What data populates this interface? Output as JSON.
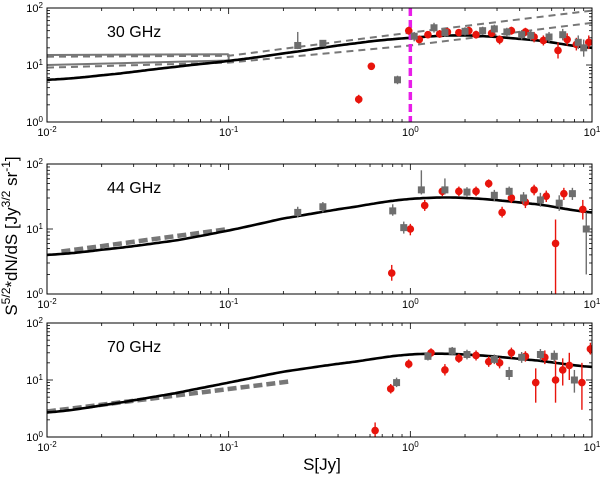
{
  "figure": {
    "xlabel": "S[Jy]",
    "ylabel": "S^{5/2}*dN/dS [Jy^{3/2} sr^{-1}]"
  },
  "chart_data": [
    {
      "type": "scatter",
      "title": "30 GHz",
      "xscale": "log",
      "yscale": "log",
      "xlim": [
        0.01,
        10
      ],
      "ylim": [
        1,
        100
      ],
      "x_ticks": [
        "10^{-2}",
        "10^{-1}",
        "10^{0}",
        "10^{1}"
      ],
      "y_ticks": [
        "10^{0}",
        "10^{1}",
        "10^{2}"
      ],
      "vline": {
        "x": 1.0,
        "color": "#e81ee8"
      },
      "model": {
        "x": [
          0.01,
          0.02,
          0.05,
          0.1,
          0.2,
          0.5,
          1,
          2,
          5,
          10
        ],
        "y": [
          5.5,
          6.6,
          9.2,
          11.8,
          16,
          24,
          30,
          33,
          27,
          20
        ]
      },
      "envelope_upper": {
        "x": [
          0.01,
          0.1,
          1,
          10
        ],
        "y": [
          14,
          14.5,
          37,
          90
        ]
      },
      "envelope_lower": {
        "x": [
          0.01,
          0.1,
          1,
          10
        ],
        "y": [
          9,
          11,
          22,
          55
        ]
      },
      "box_lines": [
        {
          "x": [
            0.01,
            0.1
          ],
          "y": [
            15,
            15.5
          ]
        },
        {
          "x": [
            0.01,
            0.1
          ],
          "y": [
            10,
            12
          ]
        }
      ],
      "series": [
        {
          "color": "#e8140c",
          "marker": "circle",
          "points": [
            [
              0.52,
              2.5,
              2.1,
              3.0
            ],
            [
              0.61,
              9.5,
              8.6,
              10.5
            ],
            [
              0.98,
              40,
              34,
              47
            ],
            [
              1.12,
              28,
              24,
              33
            ],
            [
              1.25,
              34,
              30,
              39
            ],
            [
              1.45,
              35,
              30,
              41
            ],
            [
              1.6,
              38,
              33,
              44
            ],
            [
              1.85,
              37,
              32,
              43
            ],
            [
              2.1,
              40,
              34,
              47
            ],
            [
              2.3,
              34,
              29,
              40
            ],
            [
              2.8,
              36,
              31,
              42
            ],
            [
              3.1,
              28,
              23,
              33
            ],
            [
              3.6,
              40,
              34,
              47
            ],
            [
              4.3,
              38,
              32,
              45
            ],
            [
              4.8,
              31,
              25,
              38
            ],
            [
              5.4,
              27,
              22,
              33
            ],
            [
              6.5,
              18,
              13,
              25
            ],
            [
              7.3,
              28,
              22,
              36
            ],
            [
              8.2,
              23,
              18,
              30
            ],
            [
              9.6,
              25,
              19,
              33
            ]
          ]
        },
        {
          "color": "#6e6e6e",
          "marker": "square",
          "points": [
            [
              0.24,
              22,
              19,
              38
            ],
            [
              0.33,
              24,
              21,
              27
            ],
            [
              0.85,
              5.5,
              4.6,
              6.5
            ],
            [
              1.05,
              32,
              26,
              38
            ],
            [
              1.35,
              45,
              37,
              55
            ],
            [
              1.55,
              37,
              31,
              44
            ],
            [
              2.0,
              39,
              33,
              46
            ],
            [
              2.5,
              40,
              34,
              47
            ],
            [
              2.9,
              43,
              36,
              51
            ],
            [
              3.4,
              38,
              32,
              45
            ],
            [
              4.1,
              34,
              28,
              41
            ],
            [
              4.6,
              33,
              27,
              40
            ],
            [
              5.8,
              31,
              25,
              38
            ],
            [
              6.9,
              34,
              27,
              43
            ],
            [
              8.4,
              25,
              19,
              33
            ],
            [
              9.0,
              20,
              14,
              28
            ]
          ]
        }
      ]
    },
    {
      "type": "scatter",
      "title": "44 GHz",
      "xscale": "log",
      "yscale": "log",
      "xlim": [
        0.01,
        10
      ],
      "ylim": [
        1,
        100
      ],
      "x_ticks": [
        "10^{-2}",
        "10^{-1}",
        "10^{0}",
        "10^{1}"
      ],
      "y_ticks": [
        "10^{0}",
        "10^{1}",
        "10^{2}"
      ],
      "model": {
        "x": [
          0.01,
          0.02,
          0.05,
          0.1,
          0.2,
          0.5,
          1,
          2,
          5,
          10
        ],
        "y": [
          4,
          4.8,
          6.6,
          9.5,
          14.5,
          22,
          29,
          30,
          24,
          18
        ]
      },
      "dashed_fit": {
        "x": [
          0.012,
          0.1
        ],
        "y": [
          4.5,
          10
        ]
      },
      "series": [
        {
          "color": "#e8140c",
          "marker": "circle",
          "points": [
            [
              0.79,
              2.1,
              1.6,
              2.8
            ],
            [
              1.0,
              10,
              8,
              12
            ],
            [
              1.2,
              23,
              19,
              28
            ],
            [
              1.5,
              38,
              32,
              45
            ],
            [
              1.85,
              38,
              32,
              45
            ],
            [
              2.3,
              38,
              32,
              45
            ],
            [
              2.7,
              50,
              43,
              58
            ],
            [
              3.2,
              18,
              15,
              22
            ],
            [
              3.6,
              30,
              25,
              36
            ],
            [
              4.3,
              26,
              21,
              32
            ],
            [
              4.8,
              40,
              33,
              48
            ],
            [
              5.6,
              32,
              26,
              39
            ],
            [
              6.3,
              6,
              1,
              14
            ],
            [
              7.0,
              35,
              28,
              43
            ],
            [
              8.9,
              20,
              14,
              28
            ]
          ]
        },
        {
          "color": "#6e6e6e",
          "marker": "square",
          "points": [
            [
              0.24,
              18,
              15,
              22
            ],
            [
              0.33,
              22,
              18,
              26
            ],
            [
              0.8,
              19,
              16,
              24
            ],
            [
              0.92,
              10.5,
              8.5,
              13
            ],
            [
              1.15,
              40,
              34,
              80
            ],
            [
              1.55,
              40,
              34,
              60
            ],
            [
              2.05,
              37,
              31,
              44
            ],
            [
              2.9,
              33,
              27,
              40
            ],
            [
              3.5,
              38,
              32,
              45
            ],
            [
              4.2,
              30,
              24,
              37
            ],
            [
              5.2,
              28,
              22,
              36
            ],
            [
              6.6,
              25,
              19,
              33
            ],
            [
              7.8,
              35,
              28,
              43
            ],
            [
              9.3,
              10,
              2,
              18
            ]
          ]
        }
      ]
    },
    {
      "type": "scatter",
      "title": "70 GHz",
      "xscale": "log",
      "yscale": "log",
      "xlim": [
        0.01,
        10
      ],
      "ylim": [
        1,
        100
      ],
      "x_ticks": [
        "10^{-2}",
        "10^{-1}",
        "10^{0}",
        "10^{1}"
      ],
      "y_ticks": [
        "10^{0}",
        "10^{1}",
        "10^{2}"
      ],
      "model": {
        "x": [
          0.01,
          0.02,
          0.05,
          0.1,
          0.2,
          0.5,
          1,
          2,
          5,
          10
        ],
        "y": [
          2.7,
          3.6,
          5.8,
          9,
          14,
          21,
          28,
          28,
          22,
          17
        ]
      },
      "dashed_fit": {
        "x": [
          0.01,
          0.22
        ],
        "y": [
          2.8,
          9.5
        ]
      },
      "series": [
        {
          "color": "#e8140c",
          "marker": "circle",
          "points": [
            [
              0.64,
              1.3,
              1.0,
              1.8
            ],
            [
              0.78,
              7,
              5.8,
              8.5
            ],
            [
              0.98,
              19,
              16,
              23
            ],
            [
              1.3,
              30,
              25,
              36
            ],
            [
              1.55,
              15,
              12,
              19
            ],
            [
              1.85,
              24,
              20,
              29
            ],
            [
              2.3,
              27,
              22,
              33
            ],
            [
              2.7,
              21,
              17,
              26
            ],
            [
              3.1,
              20,
              16,
              25
            ],
            [
              3.6,
              30,
              24,
              37
            ],
            [
              4.3,
              26,
              21,
              32
            ],
            [
              4.9,
              9,
              4,
              16
            ],
            [
              5.5,
              25,
              19,
              33
            ],
            [
              6.3,
              10,
              4,
              22
            ],
            [
              6.9,
              15,
              8,
              24
            ],
            [
              7.5,
              18,
              10,
              30
            ],
            [
              8.8,
              9,
              3,
              20
            ],
            [
              9.8,
              35,
              28,
              45
            ]
          ]
        },
        {
          "color": "#6e6e6e",
          "marker": "square",
          "points": [
            [
              0.84,
              9,
              7.5,
              11
            ],
            [
              1.25,
              26,
              22,
              31
            ],
            [
              1.7,
              32,
              27,
              38
            ],
            [
              2.05,
              28,
              23,
              34
            ],
            [
              2.9,
              23,
              19,
              28
            ],
            [
              3.5,
              13,
              10,
              17
            ],
            [
              4.1,
              25,
              20,
              31
            ],
            [
              5.2,
              28,
              22,
              35
            ],
            [
              6.2,
              26,
              20,
              33
            ],
            [
              8.0,
              10,
              6,
              15
            ]
          ]
        }
      ]
    }
  ]
}
